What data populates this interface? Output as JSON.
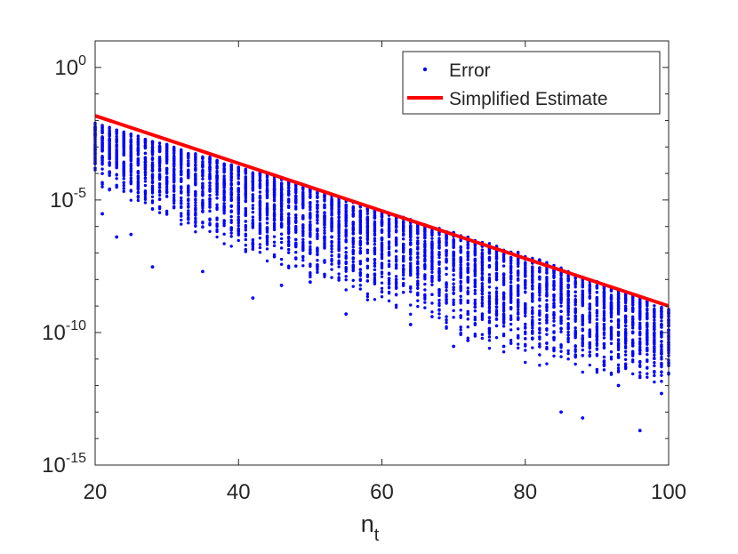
{
  "chart_data": {
    "type": "scatter",
    "xlabel": {
      "main": "n",
      "sub": "t"
    },
    "ylabel": "",
    "title": "",
    "xlim": [
      20,
      100
    ],
    "ylim": [
      1e-15,
      10
    ],
    "yscale": "log",
    "grid": false,
    "legend_position": "top-right",
    "x_ticks": [
      {
        "value": 20,
        "label": "20"
      },
      {
        "value": 40,
        "label": "40"
      },
      {
        "value": 60,
        "label": "60"
      },
      {
        "value": 80,
        "label": "80"
      },
      {
        "value": 100,
        "label": "100"
      }
    ],
    "y_ticks": [
      {
        "value": 1.0,
        "base": "10",
        "exp": "0"
      },
      {
        "value": 1e-05,
        "base": "10",
        "exp": "-5"
      },
      {
        "value": 1e-10,
        "base": "10",
        "exp": "-10"
      },
      {
        "value": 1e-15,
        "base": "10",
        "exp": "-15"
      }
    ],
    "series": [
      {
        "name": "Error",
        "kind": "scatter",
        "color": "#0000ff",
        "per_nt": [
          {
            "nt": 20,
            "min": 3e-05,
            "max": 0.008
          },
          {
            "nt": 40,
            "min": 1e-07,
            "max": 0.0002
          },
          {
            "nt": 60,
            "min": 1e-09,
            "max": 4e-06
          },
          {
            "nt": 80,
            "min": 5e-12,
            "max": 9e-08
          },
          {
            "nt": 100,
            "min": 1e-12,
            "max": 8e-10
          }
        ],
        "outliers": [
          {
            "x": 21,
            "y": 3e-06
          },
          {
            "x": 23,
            "y": 4e-07
          },
          {
            "x": 25,
            "y": 5e-07
          },
          {
            "x": 28,
            "y": 3e-08
          },
          {
            "x": 35,
            "y": 2e-08
          },
          {
            "x": 42,
            "y": 2e-09
          },
          {
            "x": 46,
            "y": 6e-09
          },
          {
            "x": 50,
            "y": 8e-09
          },
          {
            "x": 55,
            "y": 5e-10
          },
          {
            "x": 64,
            "y": 2e-10
          },
          {
            "x": 70,
            "y": 3e-11
          },
          {
            "x": 72,
            "y": 5e-11
          },
          {
            "x": 77,
            "y": 3e-11
          },
          {
            "x": 81,
            "y": 6e-11
          },
          {
            "x": 85,
            "y": 1e-13
          },
          {
            "x": 88,
            "y": 6e-14
          },
          {
            "x": 93,
            "y": 1e-12
          },
          {
            "x": 96,
            "y": 2e-14
          },
          {
            "x": 99,
            "y": 5e-13
          }
        ]
      },
      {
        "name": "Simplified Estimate",
        "kind": "line",
        "color": "#ff0000",
        "x": [
          20,
          100
        ],
        "y": [
          0.015,
          1e-09
        ]
      }
    ]
  }
}
